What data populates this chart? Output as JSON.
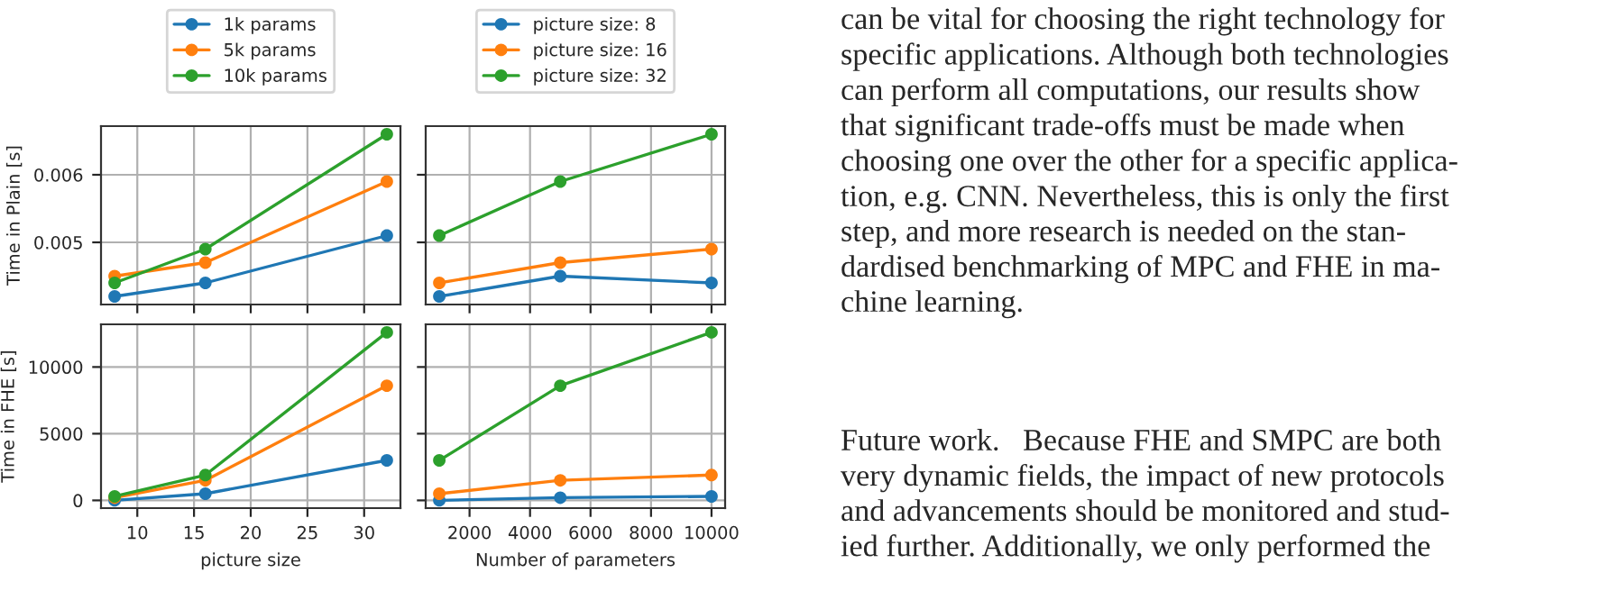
{
  "chart_data": [
    {
      "type": "line",
      "x": [
        8,
        16,
        32
      ],
      "ylabel": "Time in Plain [s]",
      "xlim": [
        6.8,
        33.2
      ],
      "ylim": [
        0.00408,
        0.00672
      ],
      "xticks": [
        10,
        15,
        20,
        25,
        30
      ],
      "yticks": [
        0.005,
        0.006
      ],
      "tick_labels": "y",
      "grid": true,
      "legend": "top",
      "marker": "circle",
      "series": [
        {
          "name": "1k params",
          "color": "#1f77b4",
          "values": [
            0.0042,
            0.0044,
            0.0051
          ]
        },
        {
          "name": "5k params",
          "color": "#ff7f0e",
          "values": [
            0.0045,
            0.0047,
            0.0059
          ]
        },
        {
          "name": "10k params",
          "color": "#2ca02c",
          "values": [
            0.0044,
            0.0049,
            0.0066
          ]
        }
      ]
    },
    {
      "type": "line",
      "x": [
        1000,
        5000,
        10000
      ],
      "xlim": [
        550,
        10450
      ],
      "ylim": [
        0.00408,
        0.00672
      ],
      "xticks": [
        2000,
        4000,
        6000,
        8000,
        10000
      ],
      "yticks": [
        0.005,
        0.006
      ],
      "tick_labels": false,
      "grid": true,
      "legend": "top",
      "marker": "circle",
      "series": [
        {
          "name": "picture size: 8",
          "color": "#1f77b4",
          "values": [
            0.0042,
            0.0045,
            0.0044
          ]
        },
        {
          "name": "picture size: 16",
          "color": "#ff7f0e",
          "values": [
            0.0044,
            0.0047,
            0.0049
          ]
        },
        {
          "name": "picture size: 32",
          "color": "#2ca02c",
          "values": [
            0.0051,
            0.0059,
            0.0066
          ]
        }
      ]
    },
    {
      "type": "line",
      "x": [
        8,
        16,
        32
      ],
      "xlabel": "picture size",
      "ylabel": "Time in FHE [s]",
      "xlim": [
        6.8,
        33.2
      ],
      "ylim": [
        -580,
        13200
      ],
      "xticks": [
        10,
        15,
        20,
        25,
        30
      ],
      "yticks": [
        0,
        5000,
        10000
      ],
      "grid": true,
      "marker": "circle",
      "series": [
        {
          "color": "#1f77b4",
          "values": [
            0,
            500,
            3000
          ]
        },
        {
          "color": "#ff7f0e",
          "values": [
            200,
            1500,
            8600
          ]
        },
        {
          "color": "#2ca02c",
          "values": [
            300,
            1900,
            12600
          ]
        }
      ]
    },
    {
      "type": "line",
      "x": [
        1000,
        5000,
        10000
      ],
      "xlabel": "Number of parameters",
      "xlim": [
        550,
        10450
      ],
      "ylim": [
        -580,
        13200
      ],
      "xticks": [
        2000,
        4000,
        6000,
        8000,
        10000
      ],
      "yticks": [
        0,
        5000,
        10000
      ],
      "tick_labels": "x",
      "grid": true,
      "marker": "circle",
      "series": [
        {
          "color": "#1f77b4",
          "values": [
            0,
            200,
            300
          ]
        },
        {
          "color": "#ff7f0e",
          "values": [
            500,
            1500,
            1900
          ]
        },
        {
          "color": "#2ca02c",
          "values": [
            3000,
            8600,
            12600
          ]
        }
      ],
      "annotations": [
        "can be vital for choosing the right technology for\nspecific applications. Although both technologies\ncan perform all computations, our results show\nthat significant trade-offs must be made when\nchoosing one over the other for a specific applica-\ntion, e.g. CNN. Nevertheless, this is only the first\nstep, and more research is needed on the stan-\ndardised benchmarking of MPC and FHE in ma-\nchine learning.",
        "Future work.   Because FHE and SMPC are both\nvery dynamic fields, the impact of new protocols\nand advancements should be monitored and stud-\nied further. Additionally, we only performed the"
      ]
    }
  ]
}
